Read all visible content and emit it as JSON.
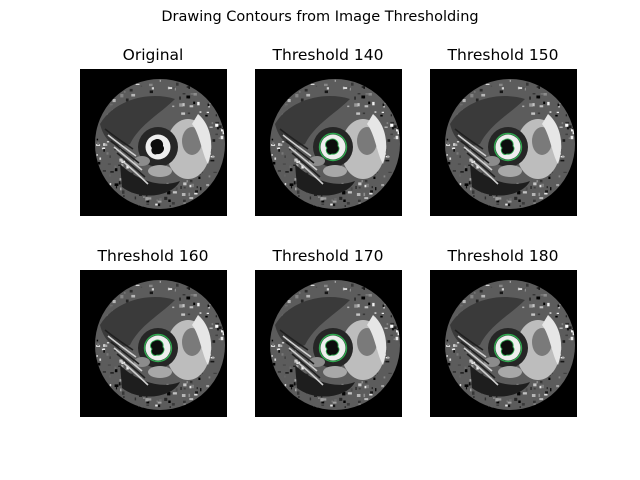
{
  "figure": {
    "title": "Drawing Contours from Image Thresholding"
  },
  "panels": [
    {
      "title": "Original",
      "contour": false,
      "contour_color": "#2fa84f"
    },
    {
      "title": "Threshold 140",
      "contour": true,
      "contour_color": "#2fa84f"
    },
    {
      "title": "Threshold 150",
      "contour": true,
      "contour_color": "#2fa84f"
    },
    {
      "title": "Threshold 160",
      "contour": true,
      "contour_color": "#2fa84f"
    },
    {
      "title": "Threshold 170",
      "contour": true,
      "contour_color": "#2fa84f"
    },
    {
      "title": "Threshold 180",
      "contour": true,
      "contour_color": "#2fa84f"
    }
  ]
}
